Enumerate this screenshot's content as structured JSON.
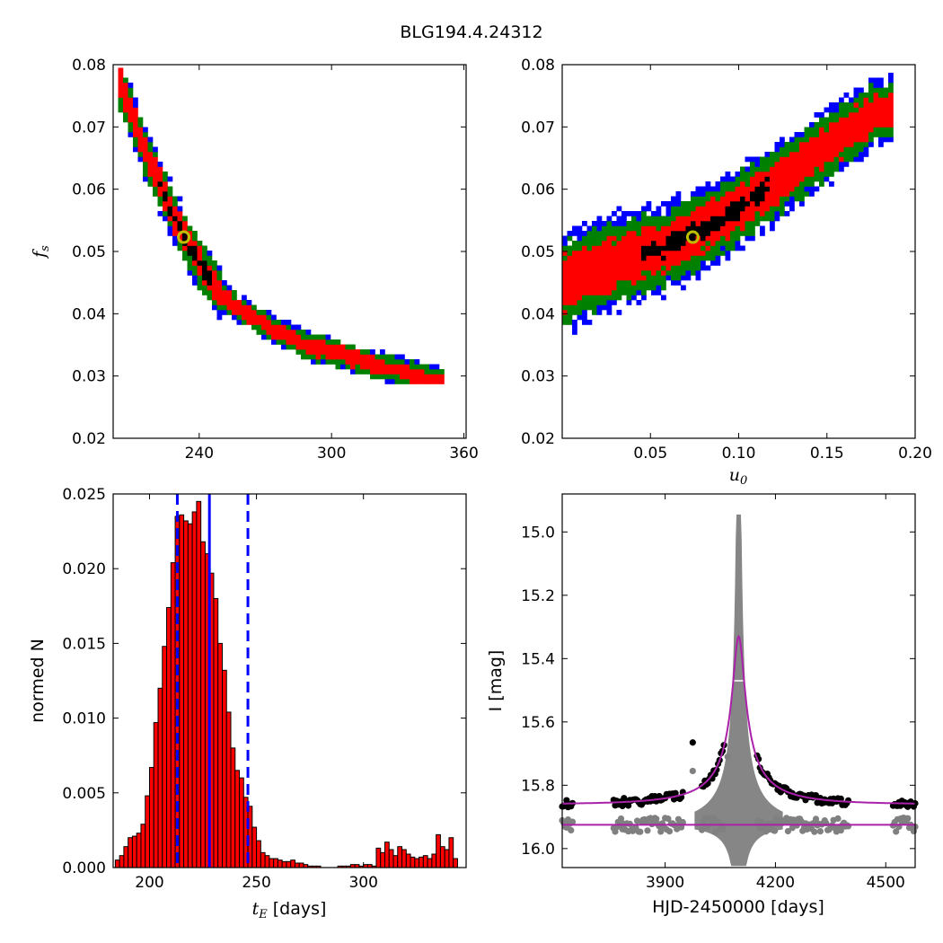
{
  "figure": {
    "title": "BLG194.4.24312"
  },
  "chart_data": [
    {
      "id": "fs_vs_tE",
      "type": "heatmap",
      "xlabel": "",
      "ylabel": "f_s",
      "xlim": [
        201,
        361
      ],
      "ylim": [
        0.02,
        0.08
      ],
      "xticks": [
        "240",
        "300",
        "360"
      ],
      "yticks": [
        "0.02",
        "0.03",
        "0.04",
        "0.05",
        "0.06",
        "0.07",
        "0.08"
      ],
      "levels": [
        {
          "name": "blue",
          "color": "#0000ff"
        },
        {
          "name": "green",
          "color": "#008000"
        },
        {
          "name": "red",
          "color": "#ff0000"
        },
        {
          "name": "black",
          "color": "#000000"
        }
      ],
      "ridge": [
        [
          205,
          0.077
        ],
        [
          215,
          0.067
        ],
        [
          225,
          0.059
        ],
        [
          232,
          0.0535
        ],
        [
          240,
          0.0485
        ],
        [
          250,
          0.0435
        ],
        [
          260,
          0.0405
        ],
        [
          275,
          0.0375
        ],
        [
          290,
          0.035
        ],
        [
          305,
          0.0335
        ],
        [
          320,
          0.032
        ],
        [
          335,
          0.0305
        ],
        [
          350,
          0.029
        ]
      ],
      "best_fit": {
        "x": 233,
        "y": 0.0523,
        "color": "#bfbf00"
      }
    },
    {
      "id": "fs_vs_u0",
      "type": "heatmap",
      "xlabel": "u_0",
      "ylabel": "",
      "xlim": [
        0,
        0.2
      ],
      "ylim": [
        0.02,
        0.08
      ],
      "xticks": [
        "0.05",
        "0.10",
        "0.15",
        "0.20"
      ],
      "yticks": [
        "0.02",
        "0.03",
        "0.04",
        "0.05",
        "0.06",
        "0.07",
        "0.08"
      ],
      "ridge": [
        [
          0.0,
          0.045
        ],
        [
          0.02,
          0.0475
        ],
        [
          0.04,
          0.0495
        ],
        [
          0.06,
          0.051
        ],
        [
          0.08,
          0.054
        ],
        [
          0.1,
          0.057
        ],
        [
          0.12,
          0.061
        ],
        [
          0.14,
          0.065
        ],
        [
          0.16,
          0.069
        ],
        [
          0.18,
          0.073
        ]
      ],
      "best_fit": {
        "x": 0.074,
        "y": 0.0523,
        "color": "#bfbf00"
      }
    },
    {
      "id": "tE_histogram",
      "type": "bar",
      "xlabel": "t_E [days]",
      "ylabel": "normed N",
      "xlim": [
        183,
        348
      ],
      "ylim": [
        0,
        0.025
      ],
      "xticks": [
        "200",
        "250",
        "300"
      ],
      "yticks": [
        "0.000",
        "0.005",
        "0.010",
        "0.015",
        "0.020",
        "0.025"
      ],
      "bin_start": 184,
      "bin_width": 2,
      "values": [
        0.0005,
        0.0008,
        0.0014,
        0.002,
        0.0021,
        0.0023,
        0.0029,
        0.0048,
        0.0067,
        0.0097,
        0.012,
        0.0148,
        0.0174,
        0.0204,
        0.0235,
        0.0236,
        0.0232,
        0.023,
        0.0238,
        0.0245,
        0.0218,
        0.021,
        0.0197,
        0.018,
        0.015,
        0.0132,
        0.0104,
        0.008,
        0.0065,
        0.006,
        0.0047,
        0.0041,
        0.0027,
        0.0018,
        0.001,
        0.0008,
        0.0006,
        0.0006,
        0.0005,
        0.0004,
        0.0004,
        0.0005,
        0.0003,
        0.0003,
        0.0002,
        0.0001,
        0.0001,
        0.0001,
        0.0,
        0.0,
        0.0,
        0.0,
        0.0001,
        0.0001,
        0.0001,
        0.0002,
        0.0002,
        0.0001,
        0.0002,
        0.0002,
        0.0001,
        0.0013,
        0.001,
        0.0017,
        0.0012,
        0.0008,
        0.0014,
        0.0012,
        0.0009,
        0.0007,
        0.0006,
        0.0007,
        0.0008,
        0.0006,
        0.0009,
        0.0022,
        0.0014,
        0.0012,
        0.002,
        0.0006
      ],
      "bar_color": "#ff0000",
      "vlines": [
        {
          "x": 213,
          "style": "dashed",
          "color": "#0000ff"
        },
        {
          "x": 228,
          "style": "solid",
          "color": "#0000ff"
        },
        {
          "x": 246,
          "style": "dashed",
          "color": "#0000ff"
        }
      ]
    },
    {
      "id": "light_curve",
      "type": "scatter",
      "xlabel": "HJD-2450000 [days]",
      "ylabel": "I [mag]",
      "xlim": [
        3620,
        4580
      ],
      "ylim": [
        16.06,
        14.88
      ],
      "xticks": [
        "3900",
        "4200",
        "4500"
      ],
      "yticks": [
        "15.0",
        "15.2",
        "15.4",
        "15.6",
        "15.8",
        "16.0"
      ],
      "model": {
        "baseline": 15.86,
        "t0": 4100,
        "peak": 15.33,
        "tE": 228,
        "u0": 0.074,
        "color": "#aa22aa"
      },
      "residual_baseline": 15.925,
      "data_color": "#000000",
      "residual_color": "#808080",
      "envelope_color": "#808080",
      "segments": [
        [
          3620,
          3650
        ],
        [
          3760,
          3950
        ],
        [
          4000,
          4060
        ],
        [
          4150,
          4400
        ],
        [
          4520,
          4580
        ]
      ],
      "outliers": [
        [
          3975,
          15.665
        ],
        [
          3975,
          15.755
        ],
        [
          4070,
          15.71
        ]
      ]
    }
  ]
}
